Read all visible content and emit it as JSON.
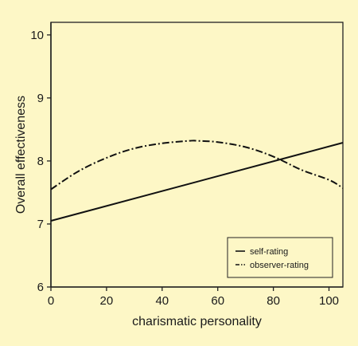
{
  "colors": {
    "page_background": "#fdf7c6",
    "plot_background": "#fdf7c6",
    "axis": "#222222",
    "line": "#111111"
  },
  "chart_data": {
    "type": "line",
    "xlabel": "charismatic personality",
    "ylabel": "Overall effectiveness",
    "xlim": [
      0,
      105
    ],
    "ylim": [
      6,
      10.2
    ],
    "xticks": [
      0,
      20,
      40,
      60,
      80,
      100
    ],
    "yticks": [
      6,
      7,
      8,
      9,
      10
    ],
    "grid": false,
    "legend_position": "bottom-right",
    "series": [
      {
        "name": "self-rating",
        "style": "solid",
        "x": [
          0,
          105
        ],
        "y": [
          7.05,
          8.29
        ]
      },
      {
        "name": "observer-rating",
        "style": "dashdot",
        "x": [
          0,
          10,
          20,
          30,
          40,
          50,
          52.5,
          60,
          70,
          80,
          90,
          100,
          105
        ],
        "y": [
          7.55,
          7.84,
          8.05,
          8.2,
          8.28,
          8.32,
          8.32,
          8.3,
          8.22,
          8.07,
          7.86,
          7.7,
          7.57
        ]
      }
    ]
  }
}
